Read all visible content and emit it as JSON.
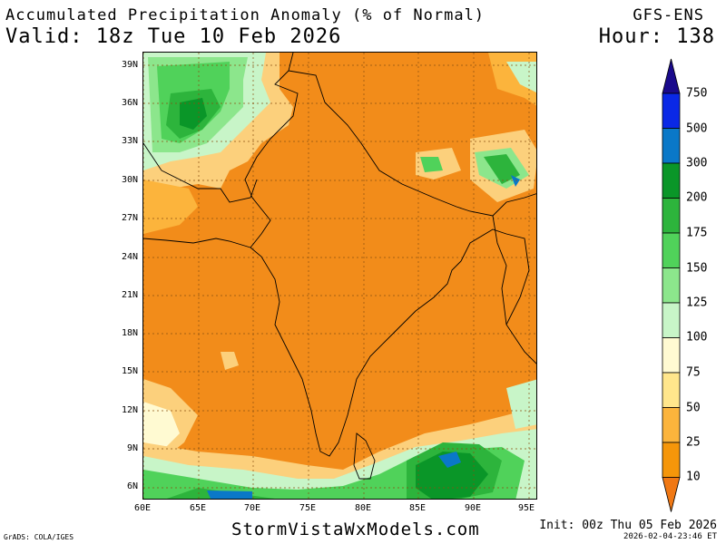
{
  "header": {
    "title": "Accumulated Precipitation Anomaly (% of Normal)",
    "valid": "Valid: 18z Tue 10 Feb 2026",
    "model": "GFS-ENS",
    "hour": "Hour: 138"
  },
  "map": {
    "lat_labels": [
      "39N",
      "36N",
      "33N",
      "30N",
      "27N",
      "24N",
      "21N",
      "18N",
      "15N",
      "12N",
      "9N",
      "6N"
    ],
    "lon_labels": [
      "60E",
      "65E",
      "70E",
      "75E",
      "80E",
      "85E",
      "90E",
      "95E"
    ],
    "region": "South Asia",
    "projection_extent": {
      "lon_min": 60,
      "lon_max": 96,
      "lat_min": 5,
      "lat_max": 40
    }
  },
  "legend": {
    "labels": [
      "750",
      "500",
      "300",
      "200",
      "175",
      "150",
      "125",
      "100",
      "75",
      "50",
      "25",
      "10"
    ],
    "colors": [
      "#1a0a8c",
      "#0a28e6",
      "#0a78c8",
      "#0a9628",
      "#2db43c",
      "#50d25a",
      "#8ce68c",
      "#c8f5c8",
      "#fffad2",
      "#ffe68c",
      "#fcb43c",
      "#f5960a",
      "#f07814"
    ]
  },
  "footer": {
    "site": "StormVistaWxModels.com",
    "credit": "GrADS: COLA/IGES",
    "init": "Init: 00z Thu 05 Feb 2026",
    "stamp": "2026-02-04-23:46 ET"
  }
}
